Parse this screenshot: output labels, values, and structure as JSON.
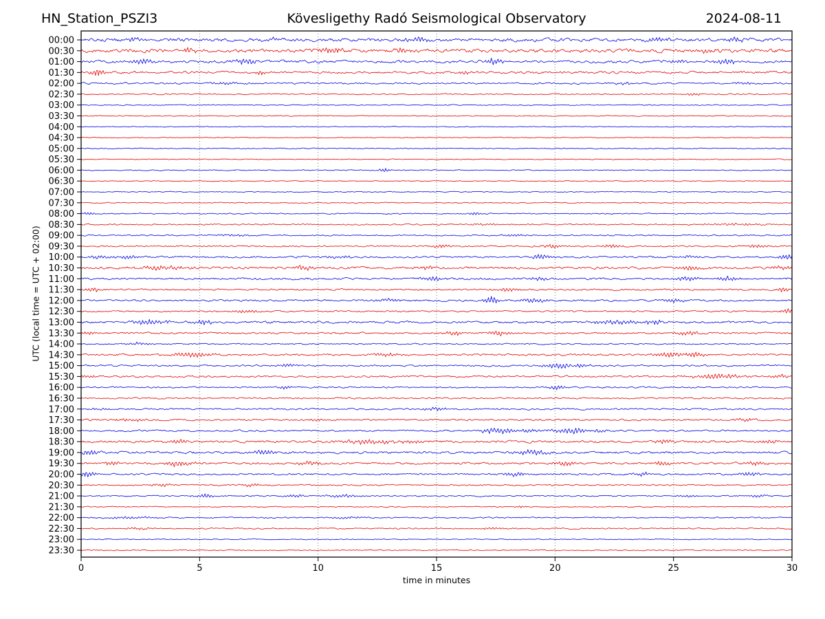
{
  "header": {
    "station": "HN_Station_PSZI3",
    "observatory": "Kövesligethy Radó Seismological Observatory",
    "date": "2024-08-11"
  },
  "chart_data": {
    "type": "line",
    "subtype": "helicorder-seismogram-day-plot",
    "station": "HN_Station_PSZI3",
    "title": "Kövesligethy Radó Seismological Observatory",
    "date": "2024-08-11",
    "xlabel": "time in minutes",
    "ylabel": "UTC (local time = UTC + 02:00)",
    "x_ticks": [
      0,
      5,
      10,
      15,
      20,
      25,
      30
    ],
    "x_range": [
      0,
      30
    ],
    "minutes_per_row": 30,
    "grid": "dotted vertical gridlines at 5,10,15,20,25 minutes",
    "legend": "none",
    "trace_colors": {
      "blue": "#0000e6",
      "red": "#e60000"
    },
    "rows": [
      {
        "time": "00:00",
        "color": "blue",
        "amp": 2.0,
        "bursts": [
          [
            2.2,
            0.4,
            2.0
          ],
          [
            8.0,
            0.4,
            2.0
          ],
          [
            14.2,
            0.5,
            3.0
          ],
          [
            24.3,
            0.4,
            2.3
          ],
          [
            27.6,
            0.4,
            3.0
          ]
        ]
      },
      {
        "time": "00:30",
        "color": "red",
        "amp": 2.1,
        "bursts": [
          [
            4.6,
            0.5,
            2.5
          ],
          [
            10.6,
            0.5,
            3.5
          ],
          [
            13.5,
            0.4,
            2.5
          ],
          [
            26.5,
            0.4,
            2.0
          ]
        ]
      },
      {
        "time": "01:00",
        "color": "blue",
        "amp": 1.6,
        "bursts": [
          [
            2.6,
            0.5,
            3.0
          ],
          [
            6.9,
            0.5,
            3.0
          ],
          [
            17.4,
            0.4,
            3.5
          ],
          [
            25.2,
            0.4,
            2.5
          ],
          [
            27.3,
            0.5,
            3.0
          ]
        ]
      },
      {
        "time": "01:30",
        "color": "red",
        "amp": 1.4,
        "bursts": [
          [
            0.7,
            0.3,
            4.5
          ],
          [
            7.6,
            0.3,
            2.5
          ],
          [
            16.2,
            0.3,
            2.0
          ]
        ]
      },
      {
        "time": "02:00",
        "color": "blue",
        "amp": 1.0,
        "bursts": [
          [
            6.0,
            0.5,
            1.5
          ],
          [
            23.0,
            0.5,
            1.5
          ],
          [
            28.0,
            0.5,
            1.5
          ]
        ]
      },
      {
        "time": "02:30",
        "color": "red",
        "amp": 0.7,
        "bursts": [
          [
            25.8,
            0.4,
            1.5
          ]
        ]
      },
      {
        "time": "03:00",
        "color": "blue",
        "amp": 0.6,
        "bursts": []
      },
      {
        "time": "03:30",
        "color": "red",
        "amp": 0.55,
        "bursts": []
      },
      {
        "time": "04:00",
        "color": "blue",
        "amp": 0.5,
        "bursts": []
      },
      {
        "time": "04:30",
        "color": "red",
        "amp": 0.5,
        "bursts": []
      },
      {
        "time": "05:00",
        "color": "blue",
        "amp": 0.6,
        "bursts": []
      },
      {
        "time": "05:30",
        "color": "red",
        "amp": 0.55,
        "bursts": []
      },
      {
        "time": "06:00",
        "color": "blue",
        "amp": 0.6,
        "bursts": [
          [
            12.8,
            0.25,
            2.2
          ]
        ]
      },
      {
        "time": "06:30",
        "color": "red",
        "amp": 0.55,
        "bursts": []
      },
      {
        "time": "07:00",
        "color": "blue",
        "amp": 0.55,
        "bursts": []
      },
      {
        "time": "07:30",
        "color": "red",
        "amp": 0.6,
        "bursts": []
      },
      {
        "time": "08:00",
        "color": "blue",
        "amp": 0.7,
        "bursts": [
          [
            0.3,
            0.3,
            1.5
          ],
          [
            16.6,
            0.25,
            2.0
          ]
        ]
      },
      {
        "time": "08:30",
        "color": "red",
        "amp": 0.8,
        "bursts": [
          [
            17.0,
            0.5,
            1.0
          ],
          [
            27.5,
            1.5,
            1.2
          ]
        ]
      },
      {
        "time": "09:00",
        "color": "blue",
        "amp": 0.8,
        "bursts": [
          [
            6.5,
            0.8,
            1.2
          ],
          [
            18.2,
            0.4,
            1.5
          ]
        ]
      },
      {
        "time": "09:30",
        "color": "red",
        "amp": 0.9,
        "bursts": [
          [
            15.2,
            0.4,
            2.0
          ],
          [
            19.9,
            0.4,
            2.0
          ],
          [
            22.4,
            0.5,
            1.8
          ],
          [
            28.6,
            0.5,
            2.0
          ]
        ]
      },
      {
        "time": "10:00",
        "color": "blue",
        "amp": 1.1,
        "bursts": [
          [
            0.8,
            0.4,
            2.2
          ],
          [
            2.0,
            0.4,
            2.0
          ],
          [
            10.8,
            0.6,
            1.8
          ],
          [
            19.4,
            0.4,
            2.8
          ],
          [
            25.6,
            0.4,
            2.0
          ],
          [
            29.8,
            0.3,
            3.5
          ]
        ]
      },
      {
        "time": "10:30",
        "color": "red",
        "amp": 1.4,
        "bursts": [
          [
            3.3,
            1.0,
            2.5
          ],
          [
            9.4,
            0.5,
            2.5
          ],
          [
            14.6,
            0.4,
            2.0
          ],
          [
            25.8,
            0.5,
            2.8
          ],
          [
            29.6,
            0.4,
            2.5
          ]
        ]
      },
      {
        "time": "11:00",
        "color": "blue",
        "amp": 1.2,
        "bursts": [
          [
            14.8,
            0.5,
            2.8
          ],
          [
            19.3,
            0.4,
            2.0
          ],
          [
            25.6,
            0.5,
            2.8
          ],
          [
            27.3,
            0.4,
            2.8
          ]
        ]
      },
      {
        "time": "11:30",
        "color": "red",
        "amp": 1.1,
        "bursts": [
          [
            0.5,
            0.3,
            2.8
          ],
          [
            18.0,
            0.5,
            2.0
          ],
          [
            29.6,
            0.3,
            3.0
          ]
        ]
      },
      {
        "time": "12:00",
        "color": "blue",
        "amp": 1.2,
        "bursts": [
          [
            13.0,
            0.5,
            1.8
          ],
          [
            17.3,
            0.3,
            5.0
          ],
          [
            19.1,
            0.5,
            2.8
          ],
          [
            24.9,
            0.5,
            2.5
          ]
        ]
      },
      {
        "time": "12:30",
        "color": "red",
        "amp": 1.0,
        "bursts": [
          [
            7.0,
            0.5,
            1.5
          ],
          [
            29.8,
            0.3,
            2.8
          ]
        ]
      },
      {
        "time": "13:00",
        "color": "blue",
        "amp": 1.4,
        "bursts": [
          [
            2.9,
            0.8,
            3.0
          ],
          [
            5.2,
            0.5,
            2.8
          ],
          [
            22.6,
            1.0,
            2.8
          ],
          [
            24.2,
            0.5,
            2.8
          ]
        ]
      },
      {
        "time": "13:30",
        "color": "red",
        "amp": 1.1,
        "bursts": [
          [
            0.3,
            0.3,
            2.0
          ],
          [
            15.7,
            0.4,
            2.8
          ],
          [
            17.6,
            0.4,
            2.8
          ],
          [
            25.6,
            0.4,
            2.8
          ]
        ]
      },
      {
        "time": "14:00",
        "color": "blue",
        "amp": 0.8,
        "bursts": [
          [
            2.4,
            0.4,
            1.8
          ]
        ]
      },
      {
        "time": "14:30",
        "color": "red",
        "amp": 1.2,
        "bursts": [
          [
            4.6,
            0.8,
            3.2
          ],
          [
            12.9,
            0.5,
            2.0
          ],
          [
            24.8,
            0.5,
            3.2
          ],
          [
            25.9,
            0.4,
            2.8
          ]
        ]
      },
      {
        "time": "15:00",
        "color": "blue",
        "amp": 1.0,
        "bursts": [
          [
            8.7,
            0.4,
            2.0
          ],
          [
            20.2,
            0.7,
            3.5
          ],
          [
            21.0,
            0.4,
            2.5
          ]
        ]
      },
      {
        "time": "15:30",
        "color": "red",
        "amp": 1.1,
        "bursts": [
          [
            0.3,
            0.3,
            2.2
          ],
          [
            26.8,
            1.0,
            2.8
          ],
          [
            29.4,
            0.4,
            2.5
          ]
        ]
      },
      {
        "time": "16:00",
        "color": "blue",
        "amp": 0.9,
        "bursts": [
          [
            8.6,
            0.3,
            2.2
          ],
          [
            20.1,
            0.4,
            2.8
          ]
        ]
      },
      {
        "time": "16:30",
        "color": "red",
        "amp": 0.9,
        "bursts": []
      },
      {
        "time": "17:00",
        "color": "blue",
        "amp": 1.0,
        "bursts": [
          [
            1.0,
            0.5,
            1.5
          ],
          [
            15.0,
            0.5,
            1.8
          ]
        ]
      },
      {
        "time": "17:30",
        "color": "red",
        "amp": 1.1,
        "bursts": [
          [
            2.0,
            0.6,
            1.6
          ],
          [
            10.0,
            0.5,
            1.6
          ],
          [
            28.0,
            0.5,
            1.6
          ]
        ]
      },
      {
        "time": "18:00",
        "color": "blue",
        "amp": 1.1,
        "bursts": [
          [
            17.7,
            0.9,
            3.2
          ],
          [
            18.8,
            0.4,
            2.8
          ],
          [
            20.8,
            0.9,
            3.2
          ],
          [
            21.8,
            0.4,
            2.5
          ]
        ]
      },
      {
        "time": "18:30",
        "color": "red",
        "amp": 1.4,
        "bursts": [
          [
            4.0,
            0.5,
            2.0
          ],
          [
            12.2,
            1.2,
            2.8
          ],
          [
            13.8,
            0.5,
            2.5
          ],
          [
            24.7,
            0.5,
            2.8
          ],
          [
            29.0,
            0.5,
            2.2
          ]
        ]
      },
      {
        "time": "19:00",
        "color": "blue",
        "amp": 1.4,
        "bursts": [
          [
            0.4,
            0.4,
            2.8
          ],
          [
            7.7,
            0.5,
            2.8
          ],
          [
            19.0,
            0.8,
            2.8
          ]
        ]
      },
      {
        "time": "19:30",
        "color": "red",
        "amp": 1.3,
        "bursts": [
          [
            1.3,
            0.4,
            2.8
          ],
          [
            4.1,
            0.6,
            3.2
          ],
          [
            9.6,
            0.5,
            2.5
          ],
          [
            20.4,
            0.4,
            2.8
          ],
          [
            24.6,
            0.4,
            2.8
          ],
          [
            28.5,
            0.4,
            2.2
          ]
        ]
      },
      {
        "time": "20:00",
        "color": "blue",
        "amp": 1.1,
        "bursts": [
          [
            0.3,
            0.3,
            4.0
          ],
          [
            18.3,
            0.5,
            2.0
          ],
          [
            23.7,
            0.4,
            2.2
          ],
          [
            28.2,
            0.5,
            2.2
          ]
        ]
      },
      {
        "time": "20:30",
        "color": "red",
        "amp": 0.9,
        "bursts": [
          [
            3.4,
            0.5,
            1.6
          ],
          [
            7.2,
            0.4,
            1.8
          ]
        ]
      },
      {
        "time": "21:00",
        "color": "blue",
        "amp": 0.8,
        "bursts": [
          [
            5.3,
            0.4,
            2.2
          ],
          [
            9.0,
            0.4,
            1.8
          ],
          [
            11.0,
            0.8,
            1.6
          ],
          [
            25.6,
            0.4,
            1.8
          ],
          [
            28.6,
            0.4,
            1.6
          ]
        ]
      },
      {
        "time": "21:30",
        "color": "red",
        "amp": 0.6,
        "bursts": [
          [
            18.5,
            0.3,
            1.2
          ]
        ]
      },
      {
        "time": "22:00",
        "color": "blue",
        "amp": 0.75,
        "bursts": [
          [
            2.0,
            1.2,
            1.1
          ],
          [
            11.3,
            0.8,
            1.2
          ]
        ]
      },
      {
        "time": "22:30",
        "color": "red",
        "amp": 0.75,
        "bursts": [
          [
            2.5,
            0.6,
            1.0
          ],
          [
            17.5,
            0.8,
            1.2
          ]
        ]
      },
      {
        "time": "23:00",
        "color": "blue",
        "amp": 0.55,
        "bursts": []
      },
      {
        "time": "23:30",
        "color": "red",
        "amp": 0.6,
        "bursts": []
      }
    ]
  }
}
